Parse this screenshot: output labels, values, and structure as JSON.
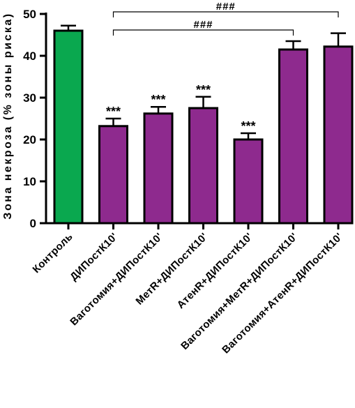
{
  "chart_data": {
    "type": "bar",
    "ylabel": "Зона некроза (% зоны риска)",
    "xlabel": "",
    "title": "",
    "ylim": [
      0,
      50
    ],
    "yticks": [
      0,
      10,
      20,
      30,
      40,
      50
    ],
    "categories": [
      "Контроль",
      "ДИПостК10'",
      "Ваготомия+ДИПостК10'",
      "МетR+ДИПостК10'",
      "АтенR+ДИПостК10'",
      "Ваготомия+МетR+ДИПостК10'",
      "Ваготомия+АтенR+ДИПостК10'"
    ],
    "values": [
      46,
      23.2,
      26.2,
      27.5,
      20,
      41.5,
      42.2
    ],
    "errors": [
      1.2,
      1.8,
      1.6,
      2.7,
      1.5,
      2.0,
      3.2
    ],
    "colors": [
      "#0aa84f",
      "#8e2a8e",
      "#8e2a8e",
      "#8e2a8e",
      "#8e2a8e",
      "#8e2a8e",
      "#8e2a8e"
    ],
    "significance": [
      "",
      "***",
      "***",
      "***",
      "***",
      "",
      ""
    ],
    "brackets": [
      {
        "from": 1,
        "to": 6,
        "label": "###"
      },
      {
        "from": 1,
        "to": 5,
        "label": "###"
      }
    ],
    "grid": false,
    "legend": "none"
  }
}
